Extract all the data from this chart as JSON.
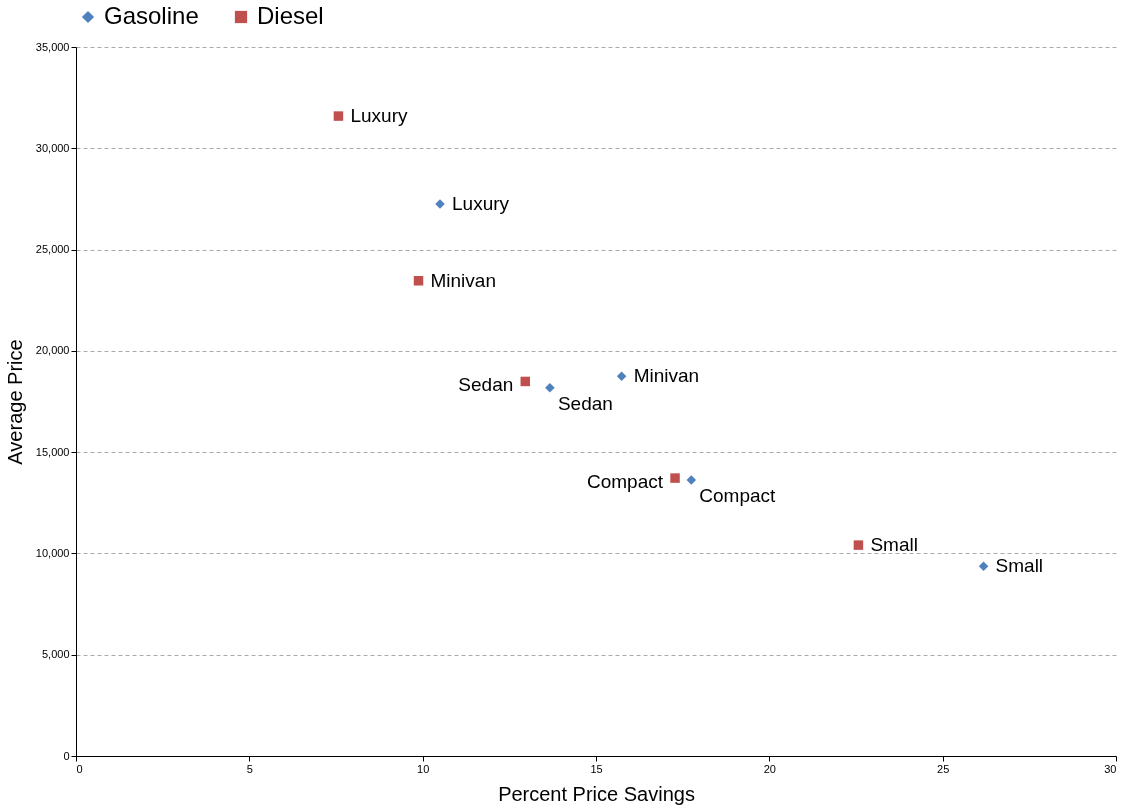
{
  "chart_data": {
    "type": "scatter",
    "xlabel": "Percent Price Savings",
    "ylabel": "Average Price",
    "xlim": [
      0,
      30
    ],
    "xticks": [
      0,
      5,
      10,
      15,
      20,
      25,
      30
    ],
    "ylim": [
      0,
      35000
    ],
    "yticks": [
      {
        "value": 0,
        "label": "0"
      },
      {
        "value": 5000,
        "label": "5,000"
      },
      {
        "value": 10000,
        "label": "10,000"
      },
      {
        "value": 15000,
        "label": "15,000"
      },
      {
        "value": 20000,
        "label": "20,000"
      },
      {
        "value": 25000,
        "label": "25,000"
      },
      {
        "value": 30000,
        "label": "30,000"
      },
      {
        "value": 35000,
        "label": "35,000"
      }
    ],
    "grid": "y",
    "legend": "top",
    "series": [
      {
        "name": "Gasoline",
        "color": "#4f81bd",
        "marker": "diamond",
        "x": [
          10.5,
          13.67,
          15.74,
          17.75,
          26.18
        ],
        "values": [
          27250,
          18180,
          18750,
          13620,
          9370
        ]
      },
      {
        "name": "Diesel",
        "color": "#c0504d",
        "marker": "square",
        "x": [
          7.57,
          9.88,
          12.96,
          17.28,
          22.57
        ],
        "values": [
          31590,
          23460,
          18490,
          13720,
          10410
        ]
      }
    ],
    "annotations": [
      {
        "text": "Luxury",
        "x": 10.5,
        "y": 27250
      },
      {
        "text": "Sedan",
        "x": 13.67,
        "y": 18180
      },
      {
        "text": "Minivan",
        "x": 15.74,
        "y": 18750
      },
      {
        "text": "Compact",
        "x": 17.75,
        "y": 13620
      },
      {
        "text": "Small",
        "x": 26.18,
        "y": 9370
      },
      {
        "text": "Luxury",
        "x": 7.57,
        "y": 31590
      },
      {
        "text": "Minivan",
        "x": 9.88,
        "y": 23460
      },
      {
        "text": "Sedan",
        "x": 12.96,
        "y": 18490
      },
      {
        "text": "Compact",
        "x": 17.28,
        "y": 13720
      },
      {
        "text": "Small",
        "x": 22.57,
        "y": 10410
      }
    ]
  }
}
